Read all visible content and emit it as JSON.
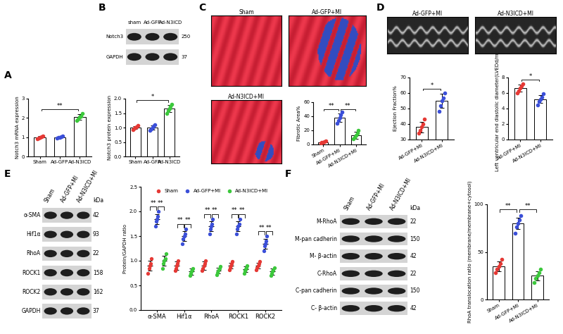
{
  "panel_labels": [
    "A",
    "B",
    "C",
    "D",
    "E",
    "F"
  ],
  "blots": [
    {
      "lanes": [
        "sham",
        "Ad-GFP",
        "Ad-N3ICD"
      ],
      "rows": [
        {
          "label": "Notch3",
          "kda": 250
        },
        {
          "label": "GAPDH",
          "kda": 37
        }
      ]
    },
    {
      "lanes": [
        "Sham",
        "Ad-GFP+MI",
        "Ad-N3ICD+MI"
      ],
      "unit": "kDa",
      "rows": [
        {
          "label": "α-SMA",
          "kda": 42
        },
        {
          "label": "Hif1α",
          "kda": 93
        },
        {
          "label": "RhoA",
          "kda": 22
        },
        {
          "label": "ROCK1",
          "kda": 158
        },
        {
          "label": "ROCK2",
          "kda": 162
        },
        {
          "label": "GAPDH",
          "kda": 37
        }
      ]
    },
    {
      "lanes": [
        "Sham",
        "Ad-GFP+MI",
        "Ad-N3ICD+MI"
      ],
      "unit": "kDa",
      "rows": [
        {
          "label": "M-RhoA",
          "kda": 22
        },
        {
          "label": "M-pan cadherin",
          "kda": 150
        },
        {
          "label": "M- β-actin",
          "kda": 42
        },
        {
          "label": "C-RhoA",
          "kda": 22
        },
        {
          "label": "C-pan cadherin",
          "kda": 150
        },
        {
          "label": "C- β-actin",
          "kda": 42
        }
      ]
    }
  ],
  "images": [
    {
      "titles": [
        "Sham",
        "Ad-GFP+MI",
        "Ad-N3ICD+MI"
      ]
    },
    {
      "titles": [
        "Ad-GFP+MI",
        "Ad-N3ICD+MI"
      ]
    }
  ],
  "chart_data": [
    {
      "type": "bar",
      "ylabel": "Notch3 mRNA expression",
      "categories": [
        "Sham",
        "Ad-GFP",
        "Ad-N3ICD"
      ],
      "colors": [
        "#e53935",
        "#3b4fd8",
        "#3cc83c"
      ],
      "values": [
        1.0,
        1.0,
        2.05
      ],
      "errors": [
        0.05,
        0.04,
        0.15
      ],
      "points": [
        [
          0.92,
          0.95,
          1.0,
          1.02,
          1.05
        ],
        [
          0.95,
          0.98,
          1.0,
          1.02,
          1.05
        ],
        [
          1.85,
          1.95,
          2.05,
          2.1,
          2.25
        ]
      ],
      "ylim": [
        0,
        3
      ],
      "yticks": [
        0,
        1,
        2,
        3
      ],
      "significance": [
        {
          "from": "Sham",
          "to": "Ad-N3ICD",
          "label": "**"
        }
      ]
    },
    {
      "type": "bar",
      "ylabel": "Notch3 protein expression",
      "categories": [
        "Sham",
        "Ad-GFP",
        "Ad-N3ICD"
      ],
      "colors": [
        "#e53935",
        "#3b4fd8",
        "#3cc83c"
      ],
      "values": [
        1.0,
        1.0,
        1.65
      ],
      "errors": [
        0.06,
        0.08,
        0.12
      ],
      "points": [
        [
          0.92,
          0.98,
          1.0,
          1.03,
          1.07
        ],
        [
          0.9,
          0.95,
          1.0,
          1.05,
          1.1
        ],
        [
          1.5,
          1.58,
          1.65,
          1.72,
          1.8
        ]
      ],
      "ylim": [
        0,
        2
      ],
      "yticks": [
        {
          "value": 0,
          "label": "0.0"
        },
        {
          "value": 0.5,
          "label": "0.5"
        },
        {
          "value": 1,
          "label": "1.0"
        },
        {
          "value": 1.5,
          "label": "1.5"
        },
        {
          "value": 2,
          "label": "2.0"
        }
      ],
      "significance": [
        {
          "from": "Sham",
          "to": "Ad-N3ICD",
          "label": "*"
        }
      ]
    },
    {
      "type": "bar",
      "ylabel": "Fibrotic Area%",
      "categories": [
        "Sham",
        "Ad-GFP+MI",
        "Ad-N3ICD+MI"
      ],
      "colors": [
        "#e53935",
        "#3b4fd8",
        "#3cc83c"
      ],
      "values": [
        3,
        38,
        13
      ],
      "errors": [
        1.2,
        6,
        5
      ],
      "points": [
        [
          2,
          3,
          3,
          4,
          5
        ],
        [
          30,
          34,
          38,
          42,
          46
        ],
        [
          8,
          10,
          13,
          16,
          20
        ]
      ],
      "ylim": [
        0,
        60
      ],
      "yticks": [
        0,
        20,
        40,
        60
      ],
      "significance": [
        {
          "from": "Sham",
          "to": "Ad-GFP+MI",
          "label": "**"
        },
        {
          "from": "Ad-GFP+MI",
          "to": "Ad-N3ICD+MI",
          "label": "**"
        }
      ]
    },
    {
      "type": "bar",
      "ylabel": "Ejection Fraction%",
      "categories": [
        "Ad-GFP+MI",
        "Ad-N3ICD+MI"
      ],
      "colors": [
        "#e53935",
        "#3b4fd8"
      ],
      "values": [
        38,
        55
      ],
      "errors": [
        3.5,
        4.5
      ],
      "points": [
        [
          34,
          36,
          38,
          40,
          43
        ],
        [
          48,
          52,
          55,
          57,
          60
        ]
      ],
      "ylim": [
        30,
        70
      ],
      "yticks": [
        30,
        40,
        50,
        60,
        70
      ],
      "significance": [
        {
          "from": "Ad-GFP+MI",
          "to": "Ad-N3ICD+MI",
          "label": "*"
        }
      ]
    },
    {
      "type": "bar",
      "ylabel": "Left ventricular end diastolic diameter(LVEDd/mm)",
      "categories": [
        "Ad-GFP+MI",
        "Ad-N3ICD+MI"
      ],
      "colors": [
        "#e53935",
        "#3b4fd8"
      ],
      "values": [
        6.6,
        5.2
      ],
      "errors": [
        0.45,
        0.5
      ],
      "points": [
        [
          6.0,
          6.3,
          6.6,
          6.9,
          7.2
        ],
        [
          4.5,
          4.9,
          5.2,
          5.5,
          5.9
        ]
      ],
      "ylim": [
        0,
        8
      ],
      "yticks": [
        0,
        2,
        4,
        6,
        8
      ],
      "significance": [
        {
          "from": "Ad-GFP+MI",
          "to": "Ad-N3ICD+MI",
          "label": "*"
        }
      ]
    },
    {
      "type": "dot",
      "ylabel": "Protein/GAPDH ratio",
      "categories": [
        "α-SMA",
        "Hif1α",
        "RhoA",
        "ROCK1",
        "ROCK2"
      ],
      "series": [
        {
          "name": "Sham",
          "color": "#e53935",
          "values": [
            0.9,
            0.9,
            0.9,
            0.9,
            0.9
          ],
          "errors": [
            0.1,
            0.08,
            0.08,
            0.06,
            0.06
          ],
          "points": [
            [
              0.75,
              0.85,
              0.9,
              0.95,
              1.05
            ],
            [
              0.8,
              0.85,
              0.9,
              0.95,
              1.0
            ],
            [
              0.8,
              0.85,
              0.9,
              0.95,
              1.0
            ],
            [
              0.82,
              0.86,
              0.9,
              0.94,
              0.98
            ],
            [
              0.82,
              0.86,
              0.9,
              0.94,
              0.98
            ]
          ]
        },
        {
          "name": "Ad-GFP+MI",
          "color": "#3b4fd8",
          "values": [
            1.85,
            1.5,
            1.7,
            1.7,
            1.35
          ],
          "errors": [
            0.1,
            0.1,
            0.1,
            0.1,
            0.1
          ],
          "points": [
            [
              1.7,
              1.8,
              1.85,
              1.9,
              2.0
            ],
            [
              1.35,
              1.45,
              1.5,
              1.55,
              1.65
            ],
            [
              1.55,
              1.65,
              1.7,
              1.75,
              1.85
            ],
            [
              1.55,
              1.65,
              1.7,
              1.75,
              1.85
            ],
            [
              1.2,
              1.3,
              1.35,
              1.4,
              1.5
            ]
          ]
        },
        {
          "name": "Ad-N3ICD+MI",
          "color": "#3cc83c",
          "values": [
            1.0,
            0.78,
            0.8,
            0.83,
            0.78
          ],
          "errors": [
            0.1,
            0.06,
            0.06,
            0.06,
            0.06
          ],
          "points": [
            [
              0.85,
              0.95,
              1.0,
              1.05,
              1.15
            ],
            [
              0.7,
              0.75,
              0.78,
              0.82,
              0.85
            ],
            [
              0.72,
              0.76,
              0.8,
              0.84,
              0.88
            ],
            [
              0.75,
              0.8,
              0.83,
              0.86,
              0.9
            ],
            [
              0.7,
              0.75,
              0.78,
              0.82,
              0.86
            ]
          ]
        }
      ],
      "ylim": [
        0,
        2.5
      ],
      "yticks": [
        {
          "value": 0,
          "label": "0.0"
        },
        {
          "value": 0.5,
          "label": "0.5"
        },
        {
          "value": 1,
          "label": "1.0"
        },
        {
          "value": 1.5,
          "label": "1.5"
        },
        {
          "value": 2,
          "label": "2.0"
        },
        {
          "value": 2.5,
          "label": "2.5"
        }
      ],
      "legend": "upper center",
      "significance": [
        {
          "category": "α-SMA",
          "from": "Sham",
          "to": "Ad-GFP+MI",
          "label": "**"
        },
        {
          "category": "α-SMA",
          "from": "Ad-GFP+MI",
          "to": "Ad-N3ICD+MI",
          "label": "**"
        },
        {
          "category": "Hif1α",
          "from": "Sham",
          "to": "Ad-GFP+MI",
          "label": "**"
        },
        {
          "category": "Hif1α",
          "from": "Ad-GFP+MI",
          "to": "Ad-N3ICD+MI",
          "label": "**"
        },
        {
          "category": "RhoA",
          "from": "Sham",
          "to": "Ad-GFP+MI",
          "label": "**"
        },
        {
          "category": "RhoA",
          "from": "Ad-GFP+MI",
          "to": "Ad-N3ICD+MI",
          "label": "**"
        },
        {
          "category": "ROCK1",
          "from": "Sham",
          "to": "Ad-GFP+MI",
          "label": "**"
        },
        {
          "category": "ROCK1",
          "from": "Ad-GFP+MI",
          "to": "Ad-N3ICD+MI",
          "label": "**"
        },
        {
          "category": "ROCK2",
          "from": "Sham",
          "to": "Ad-GFP+MI",
          "label": "**"
        },
        {
          "category": "ROCK2",
          "from": "Ad-GFP+MI",
          "to": "Ad-N3ICD+MI",
          "label": "**"
        }
      ]
    },
    {
      "type": "bar",
      "ylabel": "RhoA translocation ratio (membrane/membrane+cytosol)",
      "categories": [
        "Sham",
        "Ad-GFP+MI",
        "Ad-N3ICD+MI"
      ],
      "colors": [
        "#e53935",
        "#3b4fd8",
        "#3cc83c"
      ],
      "values": [
        35,
        80,
        25
      ],
      "errors": [
        5,
        6,
        5
      ],
      "points": [
        [
          28,
          32,
          35,
          38,
          42
        ],
        [
          70,
          76,
          80,
          84,
          88
        ],
        [
          18,
          22,
          25,
          28,
          32
        ]
      ],
      "ylim": [
        0,
        100
      ],
      "yticks": [
        0,
        50,
        100
      ],
      "significance": [
        {
          "from": "Sham",
          "to": "Ad-GFP+MI",
          "label": "**"
        },
        {
          "from": "Ad-GFP+MI",
          "to": "Ad-N3ICD+MI",
          "label": "**"
        }
      ]
    }
  ]
}
